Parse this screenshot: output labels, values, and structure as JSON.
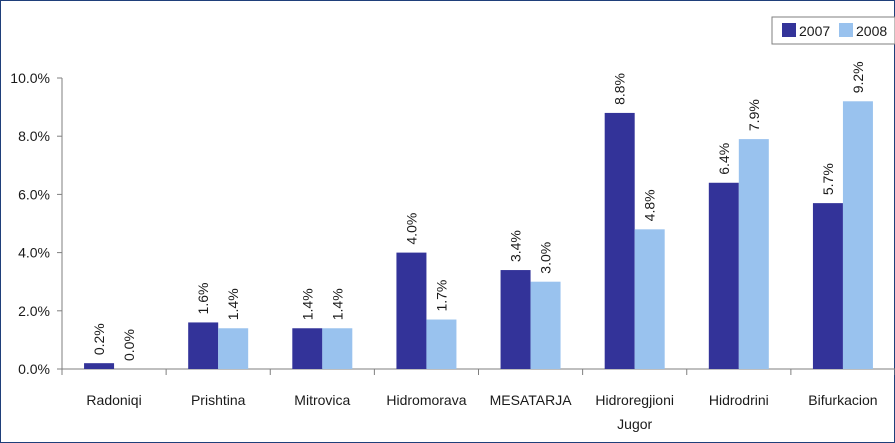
{
  "chart_data": {
    "type": "bar",
    "categories": [
      "Radoniqi",
      "Prishtina",
      "Mitrovica",
      "Hidromorava",
      "MESATARJA",
      "Hidroregjioni Jugor",
      "Hidrodrini",
      "Bifurkacion"
    ],
    "series": [
      {
        "name": "2007",
        "values": [
          0.2,
          1.6,
          1.4,
          4.0,
          3.4,
          8.8,
          6.4,
          5.7
        ],
        "labels": [
          "0.2%",
          "1.6%",
          "1.4%",
          "4.0%",
          "3.4%",
          "8.8%",
          "6.4%",
          "5.7%"
        ]
      },
      {
        "name": "2008",
        "values": [
          0.0,
          1.4,
          1.4,
          1.7,
          3.0,
          4.8,
          7.9,
          9.2
        ],
        "labels": [
          "0.0%",
          "1.4%",
          "1.4%",
          "1.7%",
          "3.0%",
          "4.8%",
          "7.9%",
          "9.2%"
        ]
      }
    ],
    "yticks": [
      "0.0%",
      "2.0%",
      "4.0%",
      "6.0%",
      "8.0%",
      "10.0%"
    ],
    "ylim": [
      0,
      10
    ],
    "grid": false,
    "legend": "top-right",
    "colors": {
      "2007": "#333399",
      "2008": "#99c2ee",
      "axis": "#7f7f7f"
    }
  }
}
